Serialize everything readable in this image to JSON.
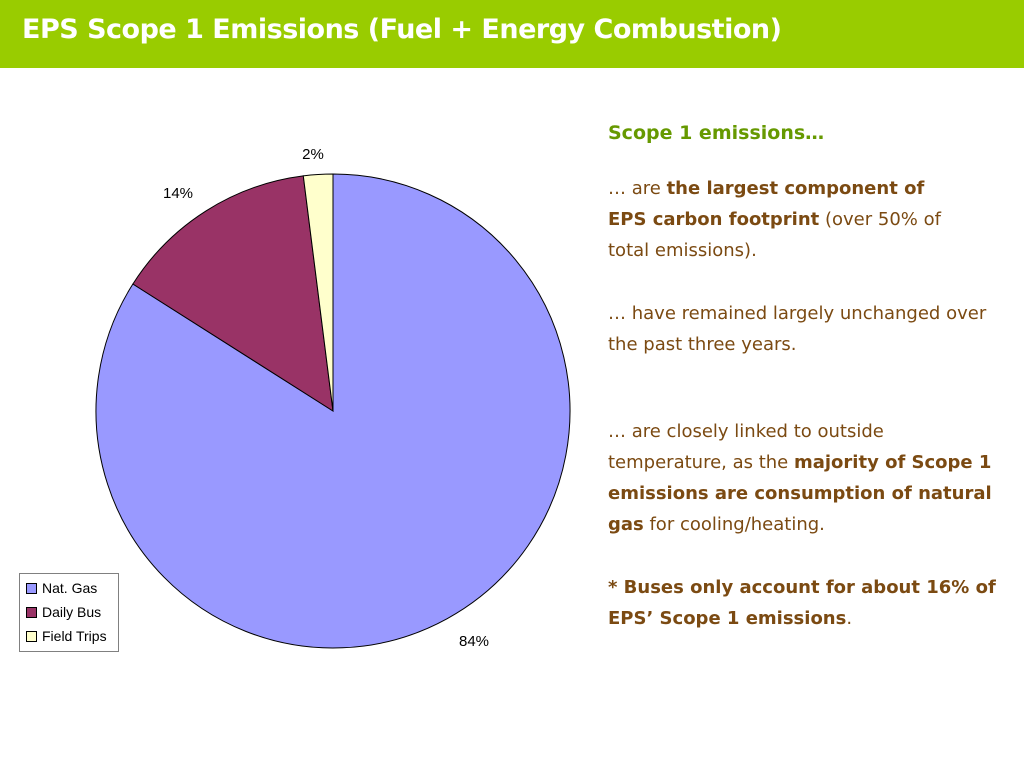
{
  "slide": {
    "title": "EPS Scope 1 Emissions (Fuel + Energy Combustion)"
  },
  "chart_data": {
    "type": "pie",
    "categories": [
      "Nat. Gas",
      "Daily Bus",
      "Field Trips"
    ],
    "values": [
      84,
      14,
      2
    ],
    "labels": [
      "84%",
      "14%",
      "2%"
    ],
    "colors": [
      "#9999ff",
      "#993366",
      "#ffffcc"
    ],
    "legend_position": "bottom-left",
    "title": ""
  },
  "text_panel": {
    "heading": "Scope 1 emissions…",
    "p1": {
      "a": "… are ",
      "b": "the largest component of EPS carbon footprint",
      "c": " (over 50% of total emissions)."
    },
    "p2": {
      "a": "… have remained largely unchanged over the past three years."
    },
    "p3": {
      "a": "… are closely linked to outside temperature, as the ",
      "b": "majority of Scope 1 emissions are consumption of natural gas",
      "c": " for cooling/heating."
    },
    "p4": {
      "b": "* Buses only account for about 16% of EPS’ Scope 1 emissions",
      "c": "."
    }
  }
}
